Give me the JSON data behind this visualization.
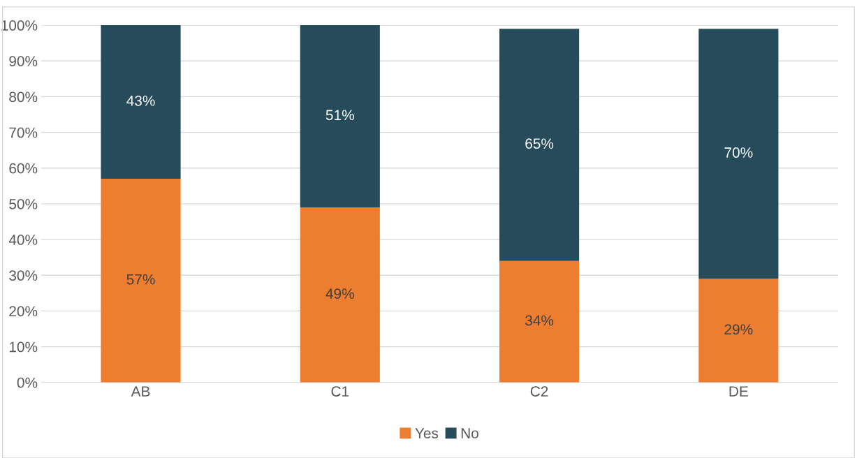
{
  "chart_data": {
    "type": "bar",
    "stacked": true,
    "categories": [
      "AB",
      "C1",
      "C2",
      "DE"
    ],
    "series": [
      {
        "name": "Yes",
        "color": "#ed7d31",
        "values": [
          57,
          49,
          34,
          29
        ],
        "value_labels": [
          "57%",
          "49%",
          "34%",
          "29%"
        ]
      },
      {
        "name": "No",
        "color": "#264b5a",
        "values": [
          43,
          51,
          65,
          70
        ],
        "value_labels": [
          "43%",
          "51%",
          "65%",
          "70%"
        ]
      }
    ],
    "ylim": [
      0,
      100
    ],
    "yticks": [
      {
        "value": 0,
        "label": "0%"
      },
      {
        "value": 10,
        "label": "10%"
      },
      {
        "value": 20,
        "label": "20%"
      },
      {
        "value": 30,
        "label": "30%"
      },
      {
        "value": 40,
        "label": "40%"
      },
      {
        "value": 50,
        "label": "50%"
      },
      {
        "value": 60,
        "label": "60%"
      },
      {
        "value": 70,
        "label": "70%"
      },
      {
        "value": 80,
        "label": "80%"
      },
      {
        "value": 90,
        "label": "90%"
      },
      {
        "value": 100,
        "label": "100%"
      }
    ],
    "grid": "y",
    "legend": "bottom"
  }
}
